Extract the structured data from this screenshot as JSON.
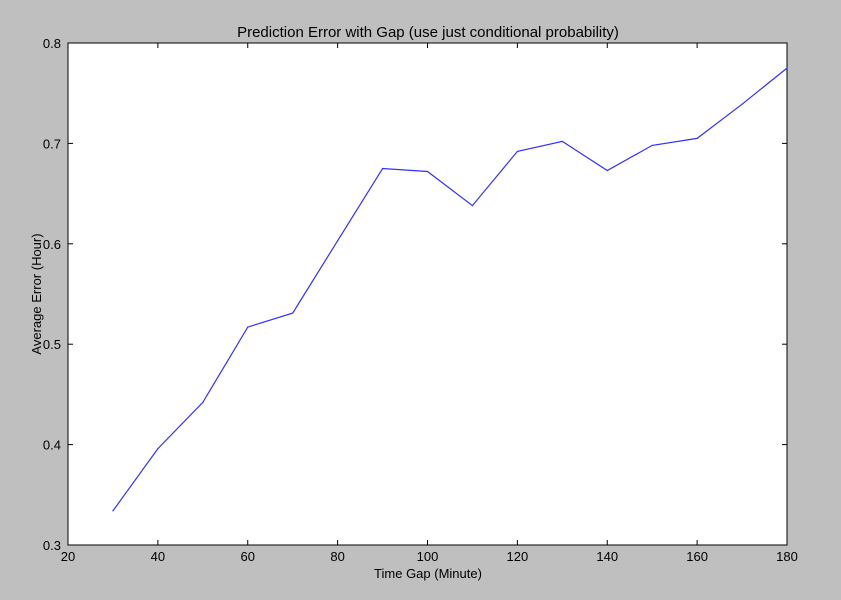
{
  "chart_data": {
    "type": "line",
    "title": "Prediction Error with Gap (use just conditional probability)",
    "xlabel": "Time Gap (Minute)",
    "ylabel": "Average Error (Hour)",
    "xlim": [
      20,
      180
    ],
    "ylim": [
      0.3,
      0.8
    ],
    "xticks": [
      "20",
      "40",
      "60",
      "80",
      "100",
      "120",
      "140",
      "160",
      "180"
    ],
    "yticks": [
      "0.3",
      "0.4",
      "0.5",
      "0.6",
      "0.7",
      "0.8"
    ],
    "grid": false,
    "series": [
      {
        "color": "#3030ff",
        "x": [
          30,
          40,
          50,
          60,
          70,
          80,
          90,
          100,
          110,
          120,
          130,
          140,
          150,
          160,
          170,
          180
        ],
        "y": [
          0.334,
          0.396,
          0.442,
          0.517,
          0.531,
          0.603,
          0.675,
          0.672,
          0.638,
          0.692,
          0.702,
          0.673,
          0.698,
          0.705,
          0.739,
          0.775
        ]
      }
    ],
    "background_color": "#bfbfbf",
    "plot_background": "#ffffff"
  }
}
